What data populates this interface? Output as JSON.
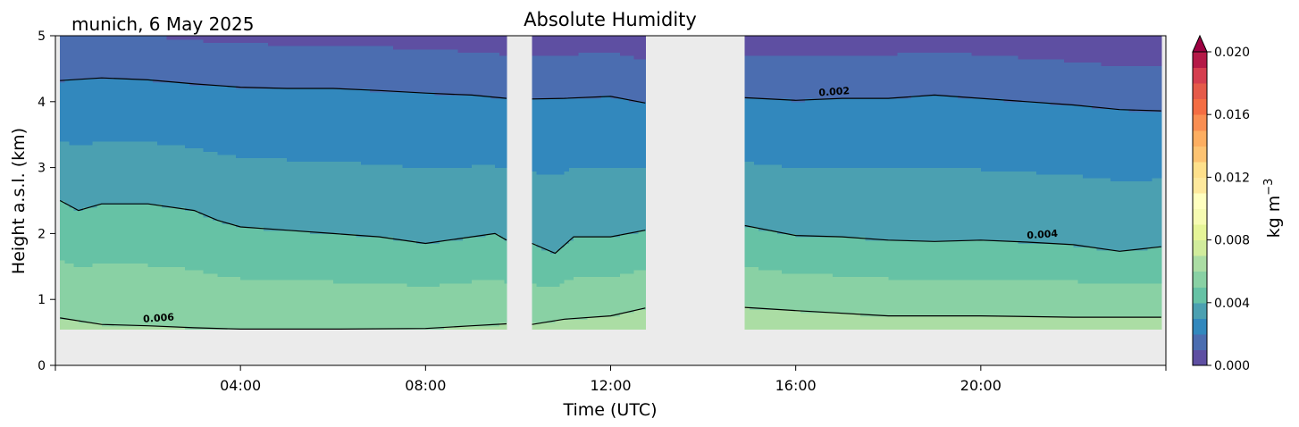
{
  "chart_data": {
    "type": "contour",
    "title": "Absolute Humidity",
    "location_date": "munich, 6 May 2025",
    "xlabel": "Time (UTC)",
    "ylabel": "Height a.s.l. (km)",
    "x_unit": "hours UTC",
    "xlim": [
      0,
      24
    ],
    "ylim": [
      0,
      5
    ],
    "x_ticks": [
      4,
      8,
      12,
      16,
      20
    ],
    "x_tick_labels": [
      "04:00",
      "08:00",
      "12:00",
      "16:00",
      "20:00"
    ],
    "y_ticks": [
      0,
      1,
      2,
      3,
      4,
      5
    ],
    "y_tick_labels": [
      "0",
      "1",
      "2",
      "3",
      "4",
      "5"
    ],
    "data_blocks": [
      {
        "t_start": 0.1,
        "t_end": 9.75
      },
      {
        "t_start": 10.3,
        "t_end": 12.75
      },
      {
        "t_start": 14.9,
        "t_end": 23.9
      }
    ],
    "lowest_level_km": 0.55,
    "contour_lines": [
      {
        "level": 0.002,
        "label": "0.002",
        "label_at_hour": 16.5,
        "points": [
          [
            0.1,
            4.32
          ],
          [
            1.0,
            4.36
          ],
          [
            2.0,
            4.33
          ],
          [
            3.0,
            4.27
          ],
          [
            4.0,
            4.22
          ],
          [
            5.0,
            4.2
          ],
          [
            6.0,
            4.2
          ],
          [
            7.0,
            4.17
          ],
          [
            8.0,
            4.13
          ],
          [
            9.0,
            4.1
          ],
          [
            9.75,
            4.05
          ],
          [
            10.3,
            4.04
          ],
          [
            11.0,
            4.05
          ],
          [
            12.0,
            4.08
          ],
          [
            12.75,
            3.98
          ],
          [
            14.9,
            4.06
          ],
          [
            16.0,
            4.02
          ],
          [
            17.0,
            4.05
          ],
          [
            18.0,
            4.05
          ],
          [
            19.0,
            4.1
          ],
          [
            20.0,
            4.05
          ],
          [
            21.0,
            4.0
          ],
          [
            22.0,
            3.95
          ],
          [
            23.0,
            3.88
          ],
          [
            23.9,
            3.86
          ]
        ]
      },
      {
        "level": 0.004,
        "label": "0.004",
        "label_at_hour": 21.0,
        "points": [
          [
            0.1,
            2.5
          ],
          [
            0.5,
            2.35
          ],
          [
            1.0,
            2.45
          ],
          [
            2.0,
            2.45
          ],
          [
            3.0,
            2.35
          ],
          [
            3.5,
            2.2
          ],
          [
            4.0,
            2.1
          ],
          [
            5.0,
            2.05
          ],
          [
            6.0,
            2.0
          ],
          [
            7.0,
            1.95
          ],
          [
            8.0,
            1.85
          ],
          [
            9.0,
            1.95
          ],
          [
            9.5,
            2.0
          ],
          [
            9.75,
            1.9
          ],
          [
            10.3,
            1.85
          ],
          [
            10.8,
            1.7
          ],
          [
            11.2,
            1.95
          ],
          [
            12.0,
            1.95
          ],
          [
            12.75,
            2.05
          ],
          [
            14.9,
            2.12
          ],
          [
            16.0,
            1.97
          ],
          [
            17.0,
            1.95
          ],
          [
            18.0,
            1.9
          ],
          [
            19.0,
            1.88
          ],
          [
            20.0,
            1.9
          ],
          [
            21.0,
            1.87
          ],
          [
            22.0,
            1.83
          ],
          [
            23.0,
            1.73
          ],
          [
            23.9,
            1.8
          ]
        ]
      },
      {
        "level": 0.006,
        "label": "0.006",
        "label_at_hour": 1.9,
        "points": [
          [
            0.1,
            0.72
          ],
          [
            1.0,
            0.62
          ],
          [
            2.0,
            0.6
          ],
          [
            3.0,
            0.57
          ],
          [
            4.0,
            0.55
          ],
          [
            6.0,
            0.55
          ],
          [
            8.0,
            0.56
          ],
          [
            9.0,
            0.6
          ],
          [
            9.75,
            0.63
          ],
          [
            10.3,
            0.62
          ],
          [
            11.0,
            0.7
          ],
          [
            12.0,
            0.75
          ],
          [
            12.75,
            0.87
          ],
          [
            14.9,
            0.88
          ],
          [
            16.0,
            0.83
          ],
          [
            18.0,
            0.75
          ],
          [
            20.0,
            0.75
          ],
          [
            22.0,
            0.73
          ],
          [
            23.9,
            0.73
          ]
        ]
      }
    ],
    "colorbar": {
      "label": "kg m",
      "label_superscript": "−3",
      "min": 0.0,
      "max": 0.02,
      "ticks": [
        0.0,
        0.004,
        0.008,
        0.012,
        0.016,
        0.02
      ],
      "tick_labels": [
        "0.000",
        "0.004",
        "0.008",
        "0.012",
        "0.016",
        "0.020"
      ],
      "levels": 20,
      "extend": "max",
      "colormap": "Spectral_r",
      "colors": [
        "#5e4fa2",
        "#4b6db0",
        "#3288bd",
        "#4ba0b1",
        "#66c2a5",
        "#89d1a4",
        "#abdda4",
        "#d1ec9c",
        "#e6f598",
        "#f6fbb2",
        "#ffffbf",
        "#fee99d",
        "#fee08b",
        "#fdc372",
        "#fdae61",
        "#f98e52",
        "#f46d43",
        "#e55a49",
        "#d53e4f",
        "#b41947",
        "#9e0142"
      ]
    },
    "missing_data_color": "#ebebeb"
  }
}
